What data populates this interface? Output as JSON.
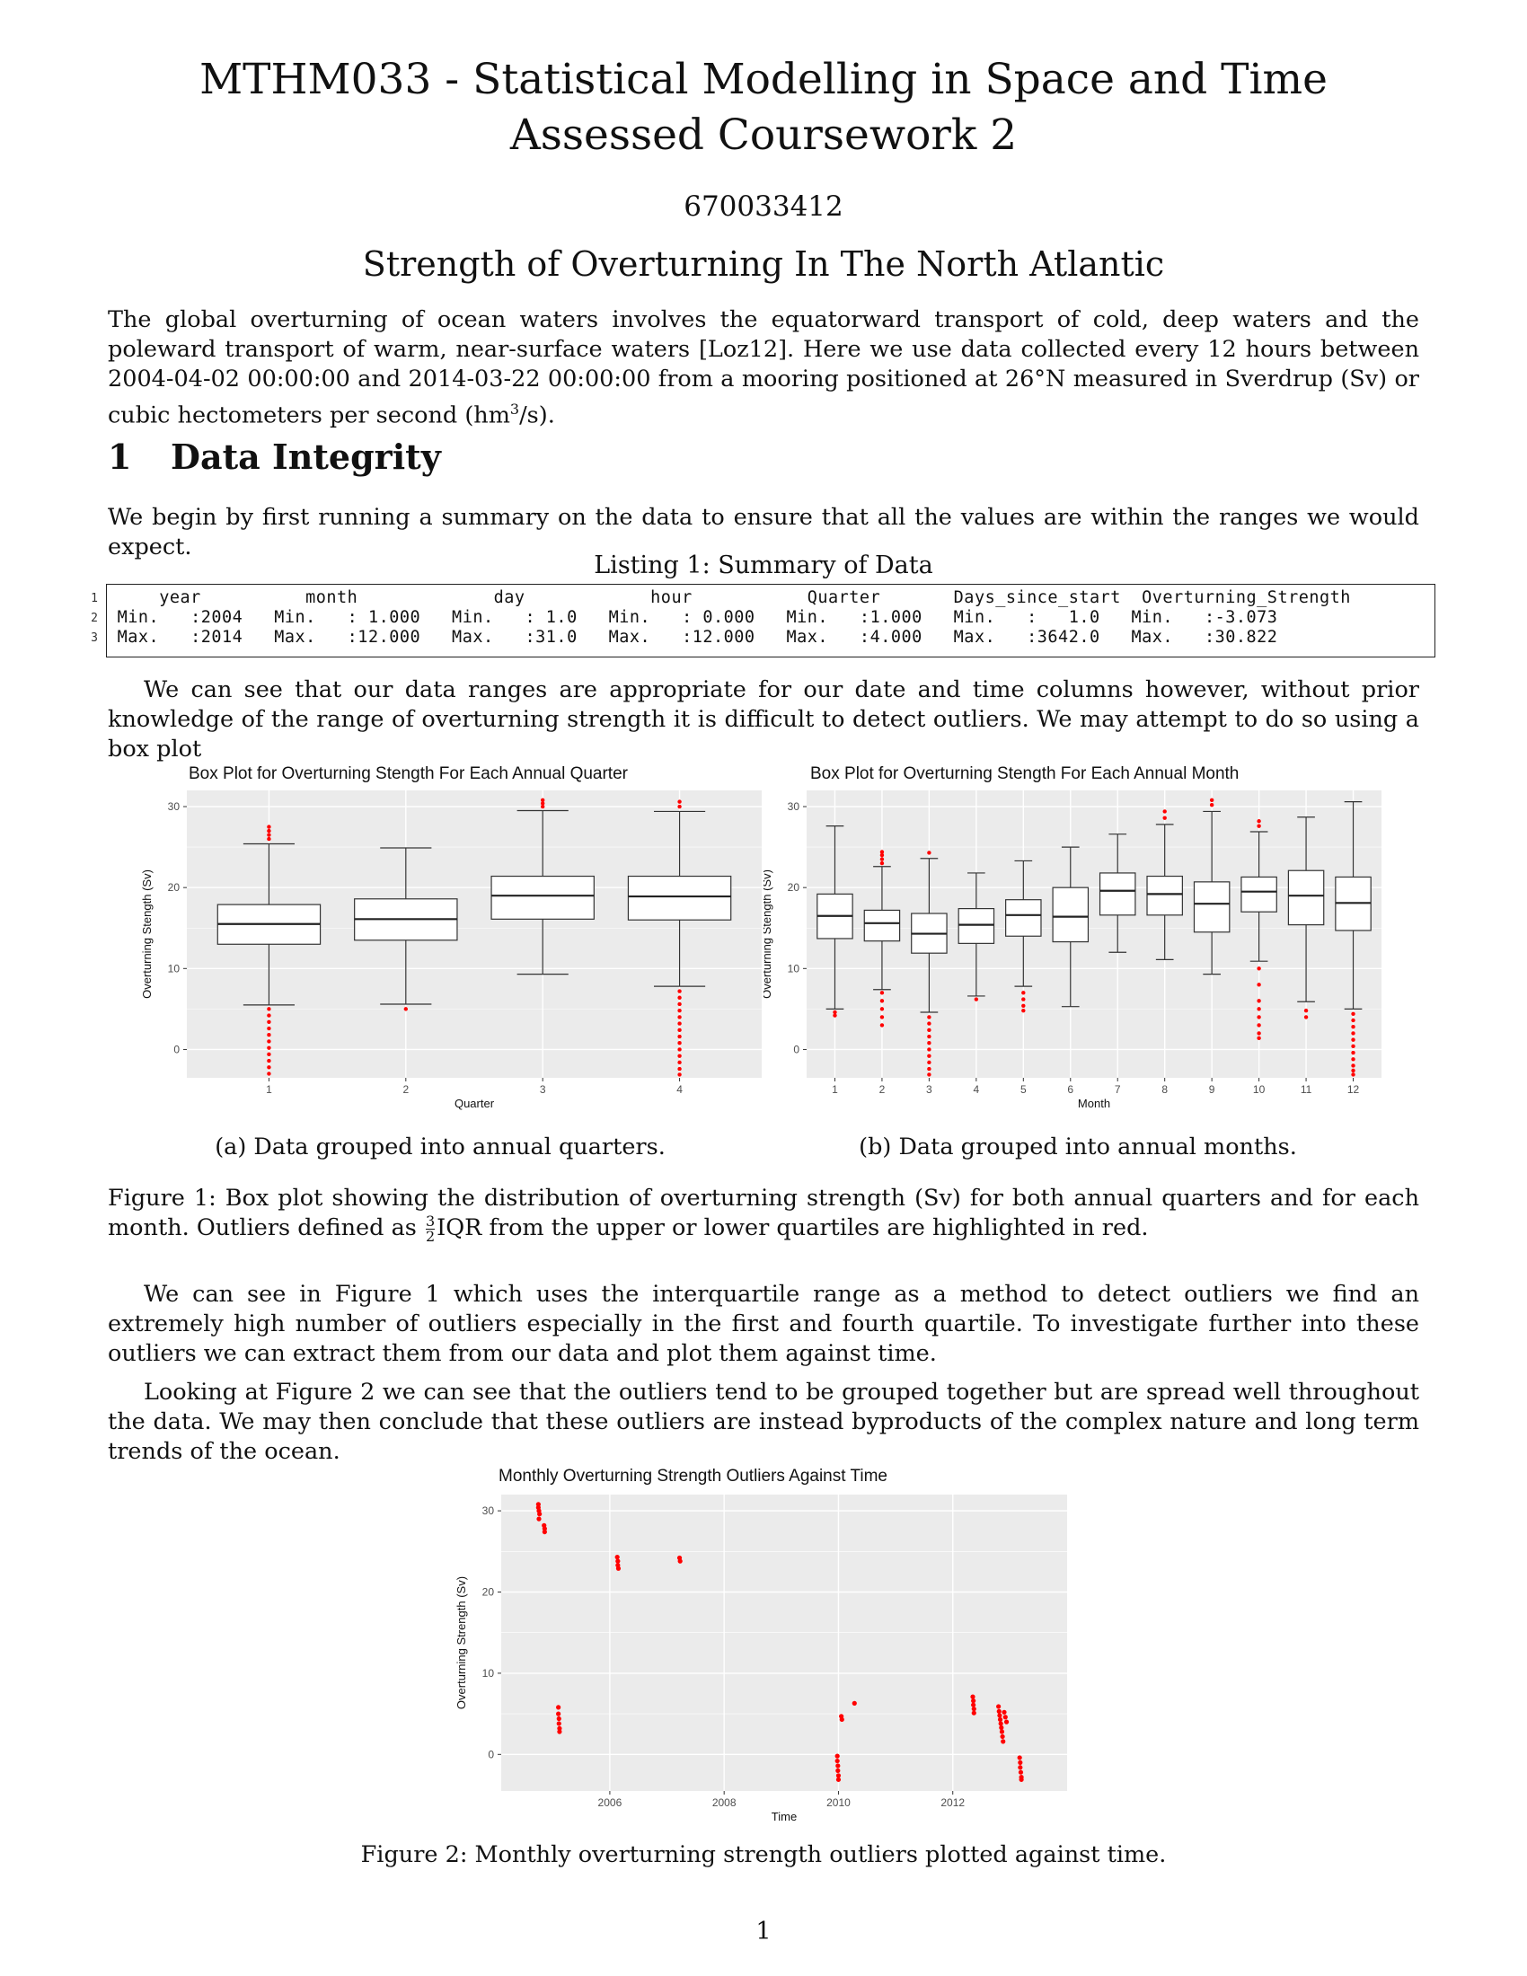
{
  "header": {
    "title_line1": "MTHM033 - Statistical Modelling in Space and Time",
    "title_line2": "Assessed Coursework 2",
    "student_id": "670033412",
    "subtitle": "Strength of Overturning In The North Atlantic"
  },
  "intro": {
    "text_before_sup": "The global overturning of ocean waters involves the equatorward transport of cold, deep waters and the poleward transport of warm, near-surface waters [Loz12]. Here we use data collected every 12 hours between 2004-04-02 00:00:00 and 2014-03-22 00:00:00 from a mooring positioned at 26°N measured in Sverdrup (Sv) or cubic hectometers per second (hm",
    "sup": "3",
    "text_after_sup": "/s)."
  },
  "section1": {
    "number": "1",
    "title": "Data Integrity",
    "para1": "We begin by first running a summary on the data to ensure that all the values are within the ranges we would expect.",
    "listing_caption": "Listing 1: Summary of Data",
    "listing_lines": [
      {
        "num": "1",
        "text": "     year          month             day            hour           Quarter       Days_since_start  Overturning_Strength"
      },
      {
        "num": "2",
        "text": " Min.   :2004   Min.   : 1.000   Min.   : 1.0   Min.   : 0.000   Min.   :1.000   Min.   :   1.0   Min.   :-3.073"
      },
      {
        "num": "3",
        "text": " Max.   :2014   Max.   :12.000   Max.   :31.0   Max.   :12.000   Max.   :4.000   Max.   :3642.0   Max.   :30.822"
      }
    ],
    "para2": "We can see that our data ranges are appropriate for our date and time columns however, without prior knowledge of the range of overturning strength it is difficult to detect outliers. We may attempt to do so using a box plot",
    "fig1a_caption": "(a) Data grouped into annual quarters.",
    "fig1b_caption": "(b) Data grouped into annual months.",
    "fig1_caption_part1": "Figure 1: Box plot showing the distribution of overturning strength (Sv) for both annual quarters and for each month. Outliers defined as ",
    "fig1_frac_num": "3",
    "fig1_frac_den": "2",
    "fig1_caption_part2": "IQR from the upper or lower quartiles are highlighted in red.",
    "para3": "We can see in Figure 1 which uses the interquartile range as a method to detect outliers we find an extremely high number of outliers especially in the first and fourth quartile. To investigate further into these outliers we can extract them from our data and plot them against time.",
    "para4": "Looking at Figure 2 we can see that the outliers tend to be grouped together but are spread well throughout the data. We may then conclude that these outliers are instead byproducts of the complex nature and long term trends of the ocean.",
    "fig2_caption": "Figure 2: Monthly overturning strength outliers plotted against time."
  },
  "page_number": "1",
  "colors": {
    "panel_bg": "#ebebeb",
    "grid": "#ffffff",
    "outlier": "#ff0000",
    "box_line": "#333333"
  },
  "chart_data": [
    {
      "type": "box",
      "title": "Box Plot for Overturning Stength For Each Annual Quarter",
      "xlabel": "Quarter",
      "ylabel": "Overturning Stength (Sv)",
      "ylim": [
        -3.5,
        32
      ],
      "yticks": [
        0,
        10,
        20,
        30
      ],
      "categories": [
        "1",
        "2",
        "3",
        "4"
      ],
      "boxes": [
        {
          "low": 5.5,
          "q1": 13.0,
          "median": 15.5,
          "q3": 17.9,
          "high": 25.4,
          "outliers": [
            26.0,
            26.5,
            27.0,
            27.5,
            5.0,
            4.2,
            3.4,
            2.6,
            1.8,
            1.0,
            0.2,
            -0.6,
            -1.4,
            -2.2,
            -3.0
          ]
        },
        {
          "low": 5.6,
          "q1": 13.5,
          "median": 16.1,
          "q3": 18.6,
          "high": 24.9,
          "outliers": [
            5.0
          ]
        },
        {
          "low": 9.3,
          "q1": 16.1,
          "median": 19.0,
          "q3": 21.4,
          "high": 29.5,
          "outliers": [
            30.0,
            30.4,
            30.8
          ]
        },
        {
          "low": 7.8,
          "q1": 16.0,
          "median": 18.9,
          "q3": 21.4,
          "high": 29.4,
          "outliers": [
            30.0,
            30.6,
            7.2,
            6.4,
            5.6,
            4.8,
            4.0,
            3.2,
            2.4,
            1.6,
            0.8,
            0.0,
            -0.8,
            -1.6,
            -2.4,
            -3.1
          ]
        }
      ]
    },
    {
      "type": "box",
      "title": "Box Plot for Overturning Stength For Each Annual Month",
      "xlabel": "Month",
      "ylabel": "Overturning Stength (Sv)",
      "ylim": [
        -3.5,
        32
      ],
      "yticks": [
        0,
        10,
        20,
        30
      ],
      "categories": [
        "1",
        "2",
        "3",
        "4",
        "5",
        "6",
        "7",
        "8",
        "9",
        "10",
        "11",
        "12"
      ],
      "boxes": [
        {
          "low": 5.0,
          "q1": 13.7,
          "median": 16.5,
          "q3": 19.2,
          "high": 27.6,
          "outliers": [
            4.6,
            4.2
          ]
        },
        {
          "low": 7.4,
          "q1": 13.4,
          "median": 15.6,
          "q3": 17.2,
          "high": 22.6,
          "outliers": [
            23.0,
            23.5,
            24.0,
            24.4,
            7.0,
            6.0,
            5.0,
            4.0,
            3.0
          ]
        },
        {
          "low": 4.6,
          "q1": 11.9,
          "median": 14.3,
          "q3": 16.8,
          "high": 23.6,
          "outliers": [
            24.3,
            4.0,
            3.2,
            2.4,
            1.6,
            0.8,
            0.0,
            -0.8,
            -1.6,
            -2.4,
            -3.1
          ]
        },
        {
          "low": 6.6,
          "q1": 13.1,
          "median": 15.4,
          "q3": 17.4,
          "high": 21.8,
          "outliers": [
            6.2
          ]
        },
        {
          "low": 7.8,
          "q1": 14.0,
          "median": 16.6,
          "q3": 18.5,
          "high": 23.3,
          "outliers": [
            7.0,
            6.2,
            5.4,
            4.8
          ]
        },
        {
          "low": 5.3,
          "q1": 13.3,
          "median": 16.4,
          "q3": 20.0,
          "high": 25.0,
          "outliers": []
        },
        {
          "low": 12.0,
          "q1": 16.6,
          "median": 19.6,
          "q3": 21.8,
          "high": 26.6,
          "outliers": []
        },
        {
          "low": 11.1,
          "q1": 16.6,
          "median": 19.2,
          "q3": 21.4,
          "high": 27.8,
          "outliers": [
            28.6,
            29.4
          ]
        },
        {
          "low": 9.3,
          "q1": 14.5,
          "median": 18.0,
          "q3": 20.7,
          "high": 29.4,
          "outliers": [
            30.2,
            30.8
          ]
        },
        {
          "low": 10.9,
          "q1": 17.0,
          "median": 19.5,
          "q3": 21.3,
          "high": 26.9,
          "outliers": [
            27.6,
            28.2,
            10.0,
            8.0,
            6.0,
            5.0,
            4.0,
            3.0,
            2.0,
            1.4
          ]
        },
        {
          "low": 5.9,
          "q1": 15.4,
          "median": 19.0,
          "q3": 22.1,
          "high": 28.7,
          "outliers": [
            4.8,
            4.0
          ]
        },
        {
          "low": 5.0,
          "q1": 14.7,
          "median": 18.1,
          "q3": 21.3,
          "high": 30.6,
          "outliers": [
            4.4,
            3.6,
            2.8,
            2.0,
            1.2,
            0.4,
            -0.4,
            -1.2,
            -2.0,
            -2.6,
            -3.1
          ]
        }
      ]
    },
    {
      "type": "scatter",
      "title": "Monthly Overturning Strength Outliers Against Time",
      "xlabel": "Time",
      "ylabel": "Overturning Strength (Sv)",
      "xlim": [
        2004.1,
        2014.0
      ],
      "ylim": [
        -4.5,
        32
      ],
      "xticks": [
        2006,
        2008,
        2010,
        2012
      ],
      "yticks": [
        0,
        10,
        20,
        30
      ],
      "points": [
        [
          2004.75,
          30.8
        ],
        [
          2004.75,
          30.4
        ],
        [
          2004.76,
          30.0
        ],
        [
          2004.77,
          29.6
        ],
        [
          2004.76,
          29.0
        ],
        [
          2004.85,
          28.2
        ],
        [
          2004.86,
          27.8
        ],
        [
          2004.86,
          27.4
        ],
        [
          2005.1,
          5.8
        ],
        [
          2005.1,
          5.0
        ],
        [
          2005.11,
          4.4
        ],
        [
          2005.11,
          3.8
        ],
        [
          2005.12,
          3.2
        ],
        [
          2005.12,
          2.8
        ],
        [
          2006.13,
          24.3
        ],
        [
          2006.14,
          23.8
        ],
        [
          2006.14,
          23.3
        ],
        [
          2006.15,
          22.9
        ],
        [
          2007.22,
          24.2
        ],
        [
          2007.23,
          23.8
        ],
        [
          2009.98,
          -0.2
        ],
        [
          2009.98,
          -0.8
        ],
        [
          2009.99,
          -1.4
        ],
        [
          2009.99,
          -2.0
        ],
        [
          2010.0,
          -2.6
        ],
        [
          2010.0,
          -3.1
        ],
        [
          2010.05,
          4.7
        ],
        [
          2010.06,
          4.3
        ],
        [
          2010.28,
          6.3
        ],
        [
          2012.35,
          7.1
        ],
        [
          2012.36,
          6.6
        ],
        [
          2012.36,
          6.1
        ],
        [
          2012.37,
          5.6
        ],
        [
          2012.37,
          5.1
        ],
        [
          2012.8,
          5.9
        ],
        [
          2012.81,
          5.3
        ],
        [
          2012.82,
          4.8
        ],
        [
          2012.83,
          4.3
        ],
        [
          2012.84,
          3.8
        ],
        [
          2012.85,
          3.3
        ],
        [
          2012.86,
          2.8
        ],
        [
          2012.87,
          2.2
        ],
        [
          2012.88,
          1.6
        ],
        [
          2012.9,
          5.2
        ],
        [
          2012.92,
          4.6
        ],
        [
          2012.94,
          4.0
        ],
        [
          2013.17,
          -0.4
        ],
        [
          2013.18,
          -1.0
        ],
        [
          2013.18,
          -1.6
        ],
        [
          2013.19,
          -2.2
        ],
        [
          2013.2,
          -2.8
        ],
        [
          2013.2,
          -3.1
        ]
      ]
    }
  ]
}
